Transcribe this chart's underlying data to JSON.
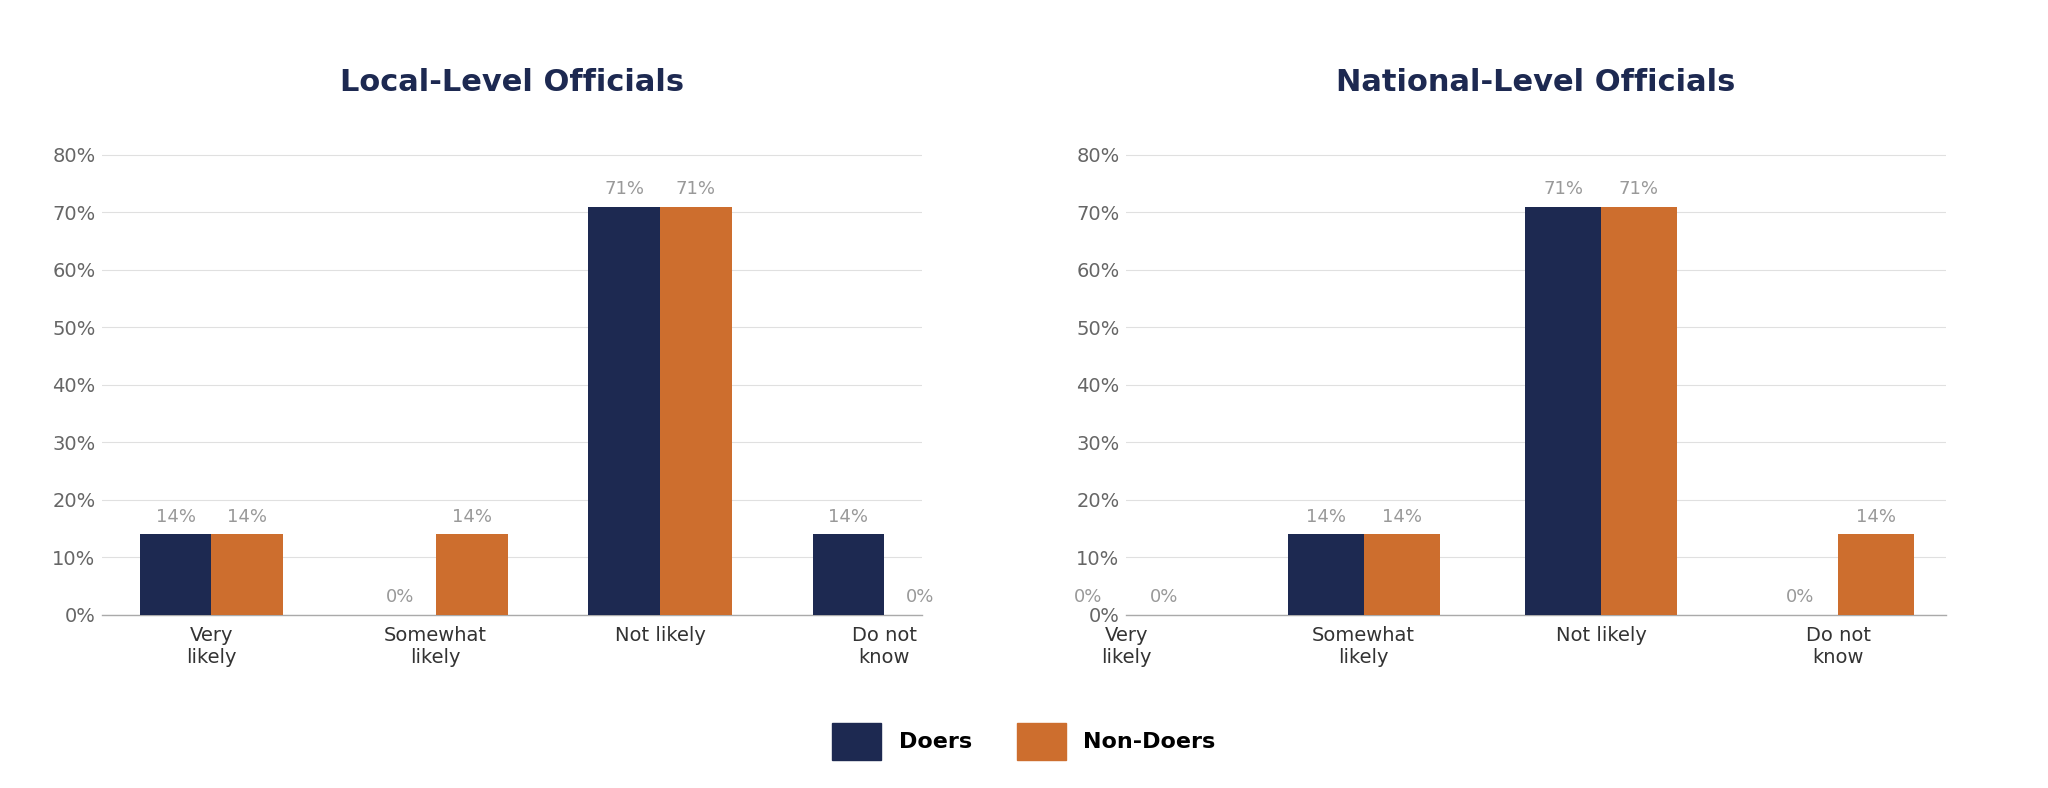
{
  "chart1": {
    "title": "Local-Level Officials",
    "categories": [
      "Very\nlikely",
      "Somewhat\nlikely",
      "Not likely",
      "Do not\nknow"
    ],
    "doers": [
      14,
      0,
      71,
      14
    ],
    "non_doers": [
      14,
      14,
      71,
      0
    ]
  },
  "chart2": {
    "title": "National-Level Officials",
    "categories": [
      "Very\nlikely",
      "Somewhat\nlikely",
      "Not likely",
      "Do not\nknow"
    ],
    "doers": [
      0,
      14,
      71,
      0
    ],
    "non_doers": [
      0,
      14,
      71,
      14
    ]
  },
  "doers_color": "#1d2951",
  "non_doers_color": "#cd6e2e",
  "background_color": "#ffffff",
  "title_color": "#1d2951",
  "bar_label_color": "#999999",
  "ylim_max": 85,
  "yticks": [
    0,
    10,
    20,
    30,
    40,
    50,
    60,
    70,
    80
  ],
  "ytick_labels": [
    "0%",
    "10%",
    "20%",
    "30%",
    "40%",
    "50%",
    "60%",
    "70%",
    "80%"
  ],
  "legend_labels": [
    "Doers",
    "Non-Doers"
  ],
  "bar_width": 0.32,
  "title_fontsize": 22,
  "tick_fontsize": 14,
  "legend_fontsize": 16,
  "value_label_fontsize": 13
}
